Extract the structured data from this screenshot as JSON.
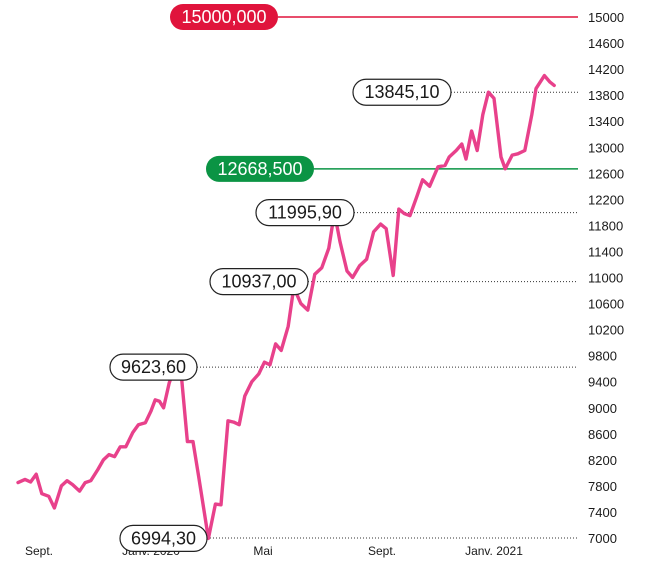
{
  "chart_data": {
    "type": "line",
    "title": "",
    "xlabel": "",
    "ylabel": "",
    "ylim": [
      7000,
      15000
    ],
    "y_ticks": [
      15000,
      14600,
      14200,
      13800,
      13400,
      13000,
      12600,
      12200,
      11800,
      11400,
      11000,
      10600,
      10200,
      9800,
      9400,
      9000,
      8600,
      8200,
      7800,
      7400,
      7000
    ],
    "x_tick_labels": [
      {
        "label": "Sept.",
        "x": 3
      },
      {
        "label": "Janv. 2020",
        "x": 19
      },
      {
        "label": "Mai",
        "x": 35
      },
      {
        "label": "Sept.",
        "x": 52
      },
      {
        "label": "Janv. 2021",
        "x": 68
      }
    ],
    "xlim": [
      0,
      80
    ],
    "line_color": "#e8418b",
    "series": [
      {
        "x": [
          0,
          1,
          1.8,
          2.6,
          3.4,
          4.4,
          5.2,
          6.2,
          7,
          7.8,
          8.8,
          9.6,
          10.4,
          11.4,
          12.2,
          13,
          13.8,
          14.6,
          15.4,
          16.4,
          17.2,
          18.2,
          19,
          19.6,
          20.2,
          20.8,
          21.6,
          22.4,
          23.4,
          24.2,
          25,
          25.8,
          27.2,
          28.2,
          29,
          30,
          30.8,
          31.6,
          32.4,
          33.4,
          34.4,
          35.2,
          36,
          36.8,
          37.6,
          38.6,
          39.4,
          40.4,
          41.4,
          42.4,
          43.4,
          44.4,
          45.2,
          46,
          47,
          47.8,
          48.8,
          49.8,
          50.8,
          51.8,
          52.6,
          53.6,
          54.4,
          55.2,
          56,
          57,
          57.8,
          58.8,
          60,
          61,
          61.6,
          62.6,
          63.4,
          64,
          64.8,
          65.6,
          66.4,
          67.2,
          68,
          69,
          69.6,
          70.6,
          71.4,
          72.4,
          73.4,
          74,
          75.2,
          76,
          76.6
        ],
        "y": [
          7850,
          7900,
          7860,
          7980,
          7680,
          7640,
          7460,
          7800,
          7880,
          7820,
          7720,
          7850,
          7880,
          8050,
          8200,
          8280,
          8250,
          8400,
          8400,
          8620,
          8740,
          8770,
          8950,
          9120,
          9100,
          9000,
          9380,
          9623.6,
          9420,
          8480,
          8480,
          7950,
          6994.3,
          7520,
          7510,
          8800,
          8780,
          8740,
          9180,
          9400,
          9520,
          9700,
          9660,
          9980,
          9880,
          10250,
          10850,
          10600,
          10500,
          11050,
          11150,
          11450,
          11995.9,
          11550,
          11100,
          11000,
          11180,
          11280,
          11700,
          11820,
          11750,
          11030,
          12050,
          11980,
          11950,
          12250,
          12500,
          12400,
          12700,
          12720,
          12850,
          12950,
          13050,
          12820,
          13250,
          12950,
          13500,
          13845.1,
          13750,
          12850,
          12668.5,
          12880,
          12900,
          12950,
          13500,
          13900,
          14100,
          14000,
          13950
        ]
      }
    ],
    "annotations": [
      {
        "label": "15000,000",
        "value": 15000,
        "color": "#e0143c",
        "style": "target-line"
      },
      {
        "label": "12668,500",
        "value": 12668.5,
        "color": "#0b9444",
        "style": "target-line"
      },
      {
        "label": "13845,10",
        "value": 13845.1,
        "x": 68,
        "style": "callout"
      },
      {
        "label": "11995,90",
        "value": 11995.9,
        "x": 45.2,
        "style": "callout"
      },
      {
        "label": "10937,00",
        "value": 10937,
        "x": 47.2,
        "style": "callout"
      },
      {
        "label": "9623,60",
        "value": 9623.6,
        "x": 23.4,
        "style": "callout"
      },
      {
        "label": "6994,30",
        "value": 6994.3,
        "x": 27.2,
        "style": "callout"
      }
    ]
  }
}
